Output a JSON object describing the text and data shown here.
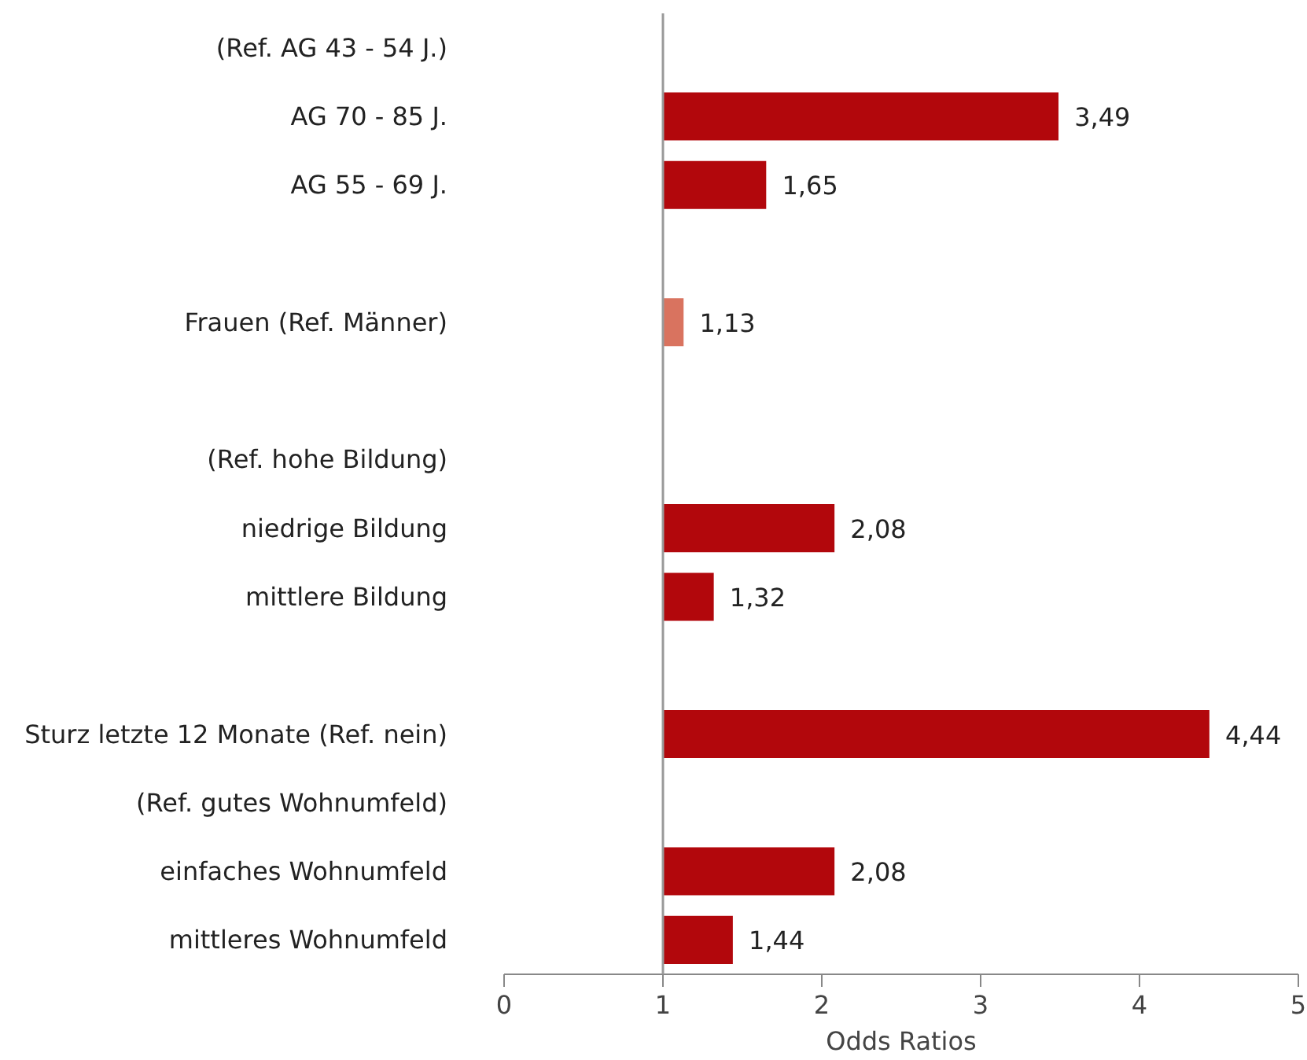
{
  "chart_data": {
    "type": "bar",
    "orientation": "horizontal",
    "xlabel": "Odds Ratios",
    "categories": [
      "(Ref. AG 43 - 54 J.)",
      "AG 70 - 85 J.",
      "AG 55 - 69 J.",
      null,
      "Frauen (Ref. Männer)",
      null,
      "(Ref. hohe Bildung)",
      "niedrige Bildung",
      "mittlere Bildung",
      null,
      "Sturz letzte 12 Monate (Ref. nein)",
      "(Ref. gutes Wohnumfeld)",
      "einfaches Wohnumfeld",
      "mittleres Wohnumfeld"
    ],
    "base": [
      null,
      1,
      1,
      null,
      1,
      null,
      null,
      1,
      1,
      null,
      1,
      null,
      1,
      1
    ],
    "values": [
      null,
      2.49,
      0.65,
      null,
      0.13,
      null,
      null,
      1.08,
      0.32,
      null,
      3.44,
      null,
      1.08,
      0.44
    ],
    "value_labels": [
      null,
      "3,49",
      "1,65",
      null,
      "1,13",
      null,
      null,
      "2,08",
      "1,32",
      null,
      "4,44",
      null,
      "2,08",
      "1,44"
    ],
    "colors": [
      "#b2070c",
      "#b2070c",
      "#b2070c",
      "#b2070c",
      "#d9735f",
      "#b2070c",
      "#b2070c",
      "#b2070c",
      "#b2070c",
      "#b2070c",
      "#b2070c",
      "#b2070c",
      "#b2070c",
      "#b2070c"
    ],
    "xlim": [
      0,
      5
    ],
    "xticks": [
      0,
      1,
      2,
      3,
      4,
      5
    ],
    "grid": false,
    "ref_lines": [
      {
        "axis": "x",
        "value": 1,
        "label": null,
        "color": "#999999"
      }
    ]
  }
}
